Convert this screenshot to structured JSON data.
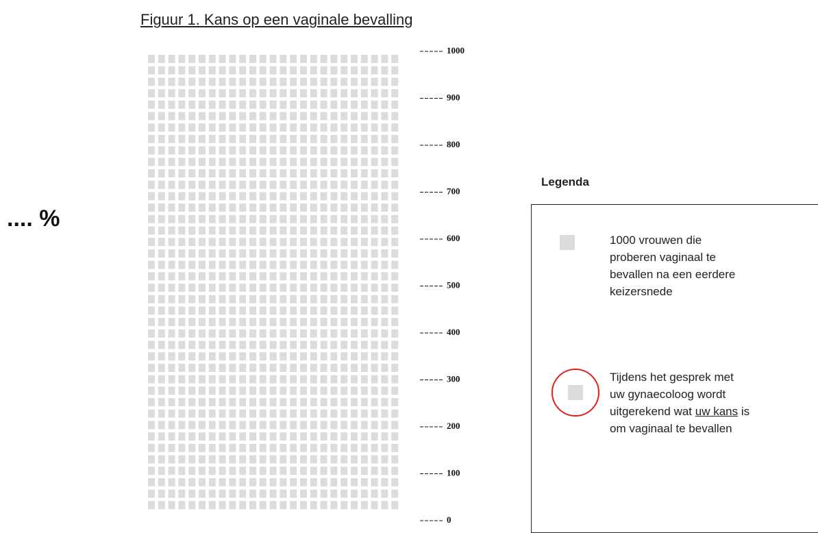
{
  "title": "Figuur 1. Kans op een vaginale bevalling",
  "percentage": ".... %",
  "scale": [
    1000,
    900,
    800,
    700,
    600,
    500,
    400,
    300,
    200,
    100,
    0
  ],
  "legend": {
    "heading": "Legenda",
    "items": [
      {
        "text": [
          "1000 vrouwen die proberen vaginaal te bevallen na een eerdere keizersnede"
        ]
      },
      {
        "text": [
          "Tijdens het gesprek met uw gynaecoloog wordt uitgerekend wat",
          "uw kans",
          "is om vaginaal te bevallen"
        ]
      }
    ]
  }
}
